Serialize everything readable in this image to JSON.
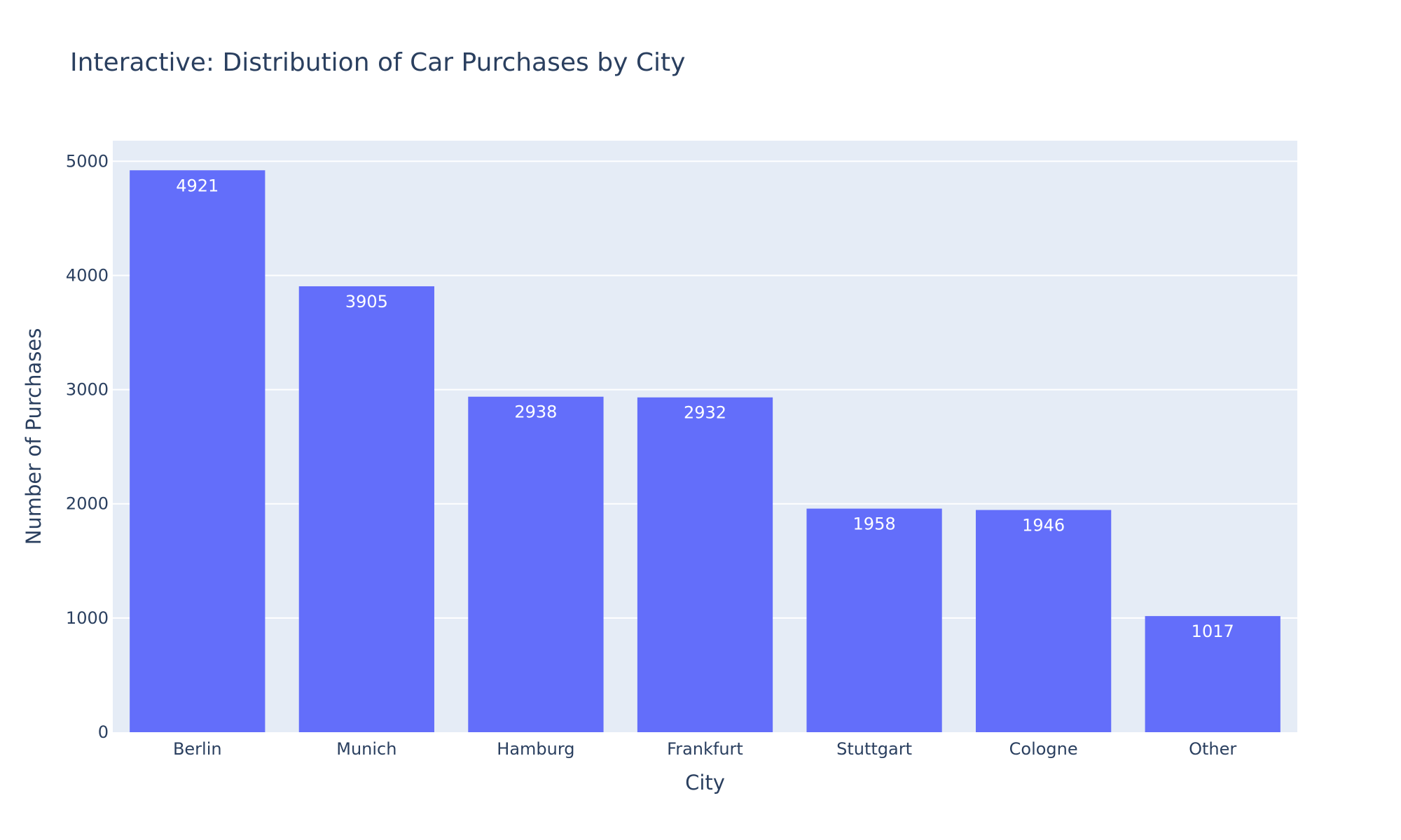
{
  "chart_data": {
    "type": "bar",
    "title": "Interactive: Distribution of Car Purchases by City",
    "xlabel": "City",
    "ylabel": "Number of Purchases",
    "categories": [
      "Berlin",
      "Munich",
      "Hamburg",
      "Frankfurt",
      "Stuttgart",
      "Cologne",
      "Other"
    ],
    "values": [
      4921,
      3905,
      2938,
      2932,
      1958,
      1946,
      1017
    ],
    "data_labels": [
      "4921",
      "3905",
      "2938",
      "2932",
      "1958",
      "1946",
      "1017"
    ],
    "ylim": [
      0,
      5180
    ],
    "yticks": [
      0,
      1000,
      2000,
      3000,
      4000,
      5000
    ],
    "ytick_labels": [
      "0",
      "1000",
      "2000",
      "3000",
      "4000",
      "5000"
    ],
    "grid": true,
    "colors": {
      "bar": "#636efa",
      "plot_background": "#e5ecf6",
      "gridline": "#ffffff",
      "text": "#2a3f5f",
      "bar_label": "#ffffff"
    }
  }
}
